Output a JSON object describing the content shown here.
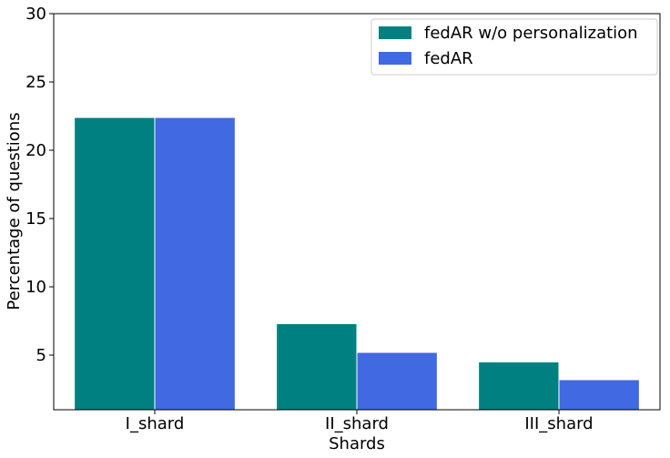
{
  "chart_data": {
    "type": "bar",
    "title": "",
    "xlabel": "Shards",
    "ylabel": "Percentage of questions",
    "categories": [
      "I_shard",
      "II_shard",
      "III_shard"
    ],
    "series": [
      {
        "name": "fedAR w/o personalization",
        "color": "#008080",
        "values": [
          22.4,
          7.3,
          4.5
        ]
      },
      {
        "name": "fedAR",
        "color": "#4169E1",
        "values": [
          22.4,
          5.2,
          3.2
        ]
      }
    ],
    "ylim": [
      1,
      30
    ],
    "yticks": [
      5,
      10,
      15,
      20,
      25,
      30
    ],
    "grid": false,
    "legend_position": "upper right"
  }
}
